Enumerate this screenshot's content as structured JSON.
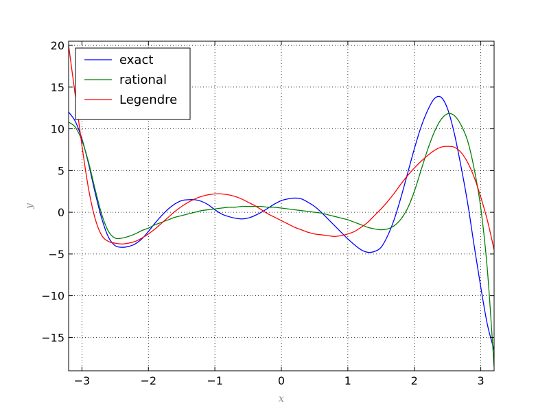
{
  "chart_data": {
    "type": "line",
    "title": "",
    "xlabel": "x",
    "ylabel": "y",
    "xlim": [
      -3.2,
      3.2
    ],
    "ylim": [
      -19,
      20.5
    ],
    "x_ticks": [
      -3,
      -2,
      -1,
      0,
      1,
      2,
      3
    ],
    "x_tick_labels": [
      "−3",
      "−2",
      "−1",
      "0",
      "1",
      "2",
      "3"
    ],
    "y_ticks": [
      -15,
      -10,
      -5,
      0,
      5,
      10,
      15,
      20
    ],
    "y_tick_labels": [
      "−15",
      "−10",
      "−5",
      "0",
      "5",
      "10",
      "15",
      "20"
    ],
    "grid": true,
    "legend_position": "top-left",
    "series": [
      {
        "name": "exact",
        "color": "#0000ff",
        "x": [
          -3.2,
          -3.1,
          -3.0,
          -2.9,
          -2.8,
          -2.7,
          -2.6,
          -2.5,
          -2.4,
          -2.3,
          -2.2,
          -2.1,
          -2.0,
          -1.9,
          -1.8,
          -1.7,
          -1.6,
          -1.5,
          -1.4,
          -1.3,
          -1.2,
          -1.1,
          -1.0,
          -0.9,
          -0.8,
          -0.7,
          -0.6,
          -0.5,
          -0.4,
          -0.3,
          -0.2,
          -0.1,
          0.0,
          0.1,
          0.2,
          0.3,
          0.4,
          0.5,
          0.6,
          0.7,
          0.8,
          0.9,
          1.0,
          1.1,
          1.2,
          1.3,
          1.4,
          1.5,
          1.6,
          1.7,
          1.8,
          1.9,
          2.0,
          2.1,
          2.2,
          2.3,
          2.4,
          2.5,
          2.6,
          2.7,
          2.8,
          2.9,
          3.0,
          3.1,
          3.2
        ],
        "y": [
          12.0,
          10.9,
          8.8,
          5.8,
          2.3,
          -0.8,
          -3.0,
          -4.0,
          -4.2,
          -4.1,
          -3.8,
          -3.2,
          -2.3,
          -1.3,
          -0.4,
          0.4,
          1.0,
          1.4,
          1.5,
          1.5,
          1.3,
          0.9,
          0.3,
          -0.2,
          -0.5,
          -0.7,
          -0.8,
          -0.7,
          -0.4,
          0.0,
          0.5,
          1.0,
          1.4,
          1.6,
          1.7,
          1.6,
          1.2,
          0.7,
          0.0,
          -0.8,
          -1.6,
          -2.4,
          -3.2,
          -3.9,
          -4.5,
          -4.8,
          -4.7,
          -4.2,
          -2.8,
          -0.8,
          1.8,
          4.7,
          7.6,
          10.2,
          12.2,
          13.6,
          13.8,
          12.4,
          9.5,
          5.6,
          1.2,
          -4.0,
          -9.0,
          -13.5,
          -16.5
        ]
      },
      {
        "name": "rational",
        "color": "#008000",
        "x": [
          -3.2,
          -3.1,
          -3.0,
          -2.9,
          -2.8,
          -2.7,
          -2.6,
          -2.5,
          -2.4,
          -2.3,
          -2.2,
          -2.1,
          -2.0,
          -1.9,
          -1.8,
          -1.7,
          -1.6,
          -1.5,
          -1.4,
          -1.3,
          -1.2,
          -1.1,
          -1.0,
          -0.9,
          -0.8,
          -0.7,
          -0.6,
          -0.5,
          -0.4,
          -0.3,
          -0.2,
          -0.1,
          0.0,
          0.1,
          0.2,
          0.3,
          0.4,
          0.5,
          0.6,
          0.7,
          0.8,
          0.9,
          1.0,
          1.1,
          1.2,
          1.3,
          1.4,
          1.5,
          1.6,
          1.7,
          1.8,
          1.9,
          2.0,
          2.1,
          2.2,
          2.3,
          2.4,
          2.5,
          2.6,
          2.7,
          2.8,
          2.9,
          3.0,
          3.1,
          3.2
        ],
        "y": [
          10.8,
          10.2,
          8.6,
          6.0,
          2.7,
          -0.3,
          -2.3,
          -3.1,
          -3.1,
          -2.9,
          -2.6,
          -2.2,
          -1.9,
          -1.5,
          -1.2,
          -0.9,
          -0.6,
          -0.4,
          -0.2,
          0.0,
          0.2,
          0.3,
          0.4,
          0.5,
          0.6,
          0.6,
          0.7,
          0.7,
          0.7,
          0.7,
          0.6,
          0.6,
          0.5,
          0.4,
          0.3,
          0.2,
          0.1,
          0.0,
          -0.1,
          -0.3,
          -0.5,
          -0.7,
          -0.9,
          -1.2,
          -1.5,
          -1.8,
          -2.0,
          -2.1,
          -2.0,
          -1.6,
          -0.8,
          0.5,
          2.5,
          5.0,
          7.5,
          9.6,
          11.1,
          11.8,
          11.6,
          10.5,
          8.6,
          5.2,
          0.5,
          -7.0,
          -18.5
        ]
      },
      {
        "name": "Legendre",
        "color": "#ff0000",
        "x": [
          -3.2,
          -3.1,
          -3.0,
          -2.9,
          -2.8,
          -2.7,
          -2.6,
          -2.5,
          -2.4,
          -2.3,
          -2.2,
          -2.1,
          -2.0,
          -1.9,
          -1.8,
          -1.7,
          -1.6,
          -1.5,
          -1.4,
          -1.3,
          -1.2,
          -1.1,
          -1.0,
          -0.9,
          -0.8,
          -0.7,
          -0.6,
          -0.5,
          -0.4,
          -0.3,
          -0.2,
          -0.1,
          0.0,
          0.1,
          0.2,
          0.3,
          0.4,
          0.5,
          0.6,
          0.7,
          0.8,
          0.9,
          1.0,
          1.1,
          1.2,
          1.3,
          1.4,
          1.5,
          1.6,
          1.7,
          1.8,
          1.9,
          2.0,
          2.1,
          2.2,
          2.3,
          2.4,
          2.5,
          2.6,
          2.7,
          2.8,
          2.9,
          3.0,
          3.1,
          3.2
        ],
        "y": [
          20.0,
          14.0,
          8.0,
          2.8,
          -0.8,
          -2.8,
          -3.5,
          -3.7,
          -3.8,
          -3.7,
          -3.5,
          -3.1,
          -2.6,
          -2.0,
          -1.3,
          -0.6,
          0.1,
          0.7,
          1.2,
          1.6,
          1.9,
          2.1,
          2.2,
          2.2,
          2.1,
          1.9,
          1.6,
          1.2,
          0.8,
          0.3,
          -0.2,
          -0.6,
          -1.0,
          -1.4,
          -1.8,
          -2.1,
          -2.4,
          -2.6,
          -2.7,
          -2.8,
          -2.9,
          -2.8,
          -2.6,
          -2.3,
          -1.8,
          -1.2,
          -0.4,
          0.4,
          1.3,
          2.3,
          3.4,
          4.4,
          5.3,
          6.1,
          6.8,
          7.4,
          7.8,
          7.9,
          7.8,
          7.2,
          6.0,
          4.2,
          1.8,
          -1.0,
          -4.5
        ]
      }
    ]
  }
}
